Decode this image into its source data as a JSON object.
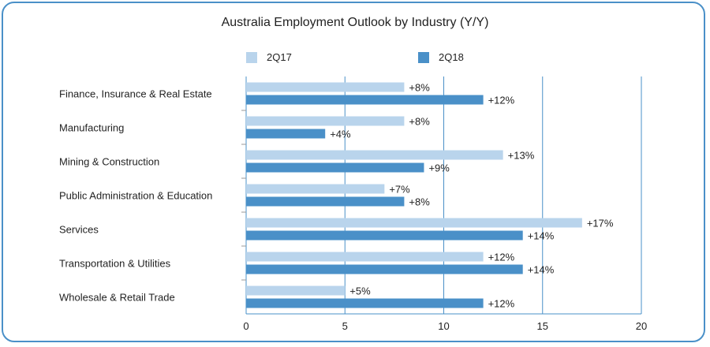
{
  "chart_data": {
    "type": "bar",
    "orientation": "horizontal",
    "title": "Australia Employment Outlook by Industry (Y/Y)",
    "categories": [
      "Finance, Insurance & Real Estate",
      "Manufacturing",
      "Mining & Construction",
      "Public Administration & Education",
      "Services",
      "Transportation & Utilities",
      "Wholesale & Retail Trade"
    ],
    "series": [
      {
        "name": "2Q17",
        "color": "#b9d4ec",
        "values": [
          8,
          8,
          13,
          7,
          17,
          12,
          5
        ],
        "labels": [
          "+8%",
          "+8%",
          "+13%",
          "+7%",
          "+17%",
          "+12%",
          "+5%"
        ]
      },
      {
        "name": "2Q18",
        "color": "#4a90c8",
        "values": [
          12,
          4,
          9,
          8,
          14,
          14,
          12
        ],
        "labels": [
          "+12%",
          "+4%",
          "+9%",
          "+8%",
          "+14%",
          "+14%",
          "+12%"
        ]
      }
    ],
    "xlim": [
      0,
      20
    ],
    "xticks": [
      0,
      5,
      10,
      15,
      20
    ],
    "grid": "vertical",
    "legend": "top"
  },
  "colors": {
    "frame": "#4a90c8",
    "grid": "#4a90c8",
    "category_sep": "#999999"
  }
}
